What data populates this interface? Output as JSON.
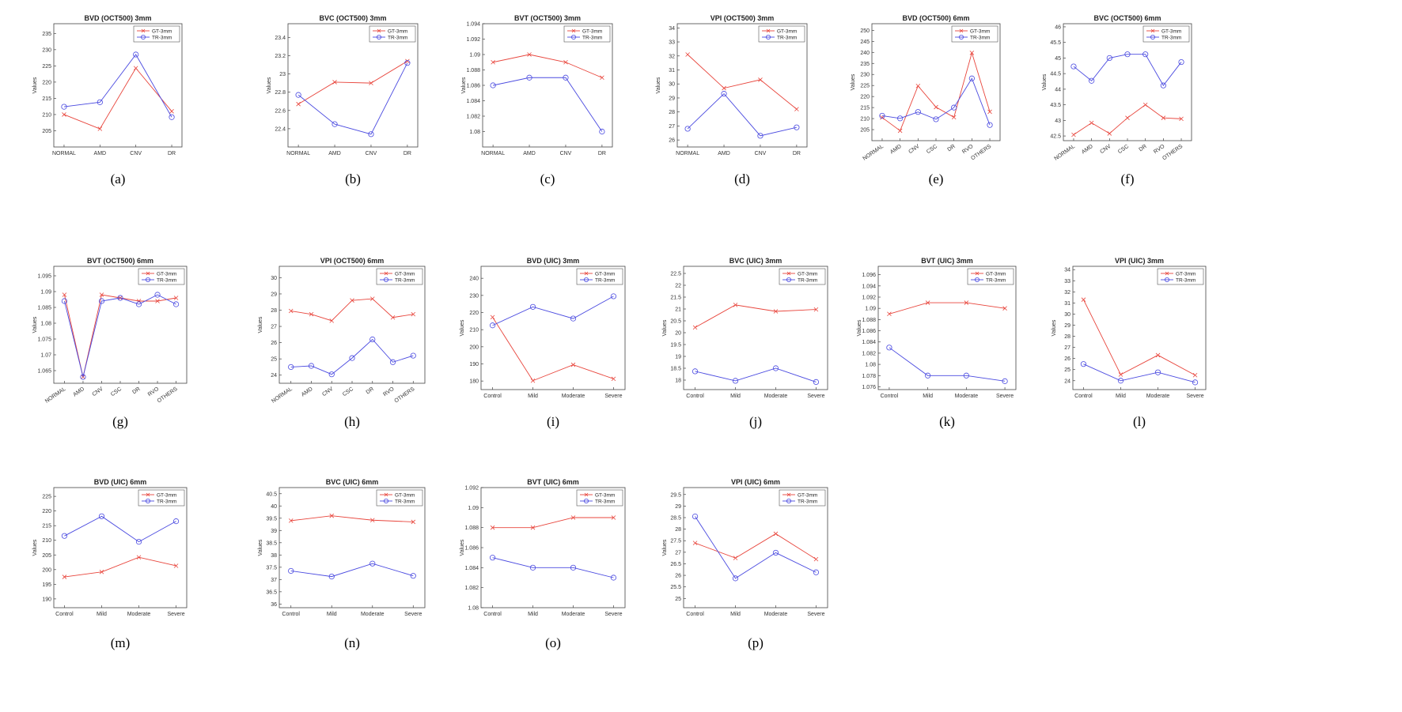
{
  "colors": {
    "gt": "#e8453c",
    "tr": "#4a4ae0",
    "axis": "#333333"
  },
  "chart_data": [
    {
      "type": "line",
      "title": "BVD (OCT500) 3mm",
      "ylabel": "Values",
      "caption": "(a)",
      "categories": [
        "NORMAL",
        "AMD",
        "CNV",
        "DR"
      ],
      "ylim": [
        200,
        238
      ],
      "yticks": [
        205,
        210,
        215,
        220,
        225,
        230,
        235
      ],
      "rotate": false,
      "series": [
        {
          "name": "GT-3mm",
          "marker": "x",
          "values": [
            210,
            205.6,
            224.3,
            211
          ]
        },
        {
          "name": "TR-3mm",
          "marker": "o",
          "values": [
            212.4,
            213.8,
            228.5,
            209.2
          ]
        }
      ]
    },
    {
      "type": "line",
      "title": "BVC (OCT500) 3mm",
      "ylabel": "Values",
      "caption": "(b)",
      "categories": [
        "NORMAL",
        "AMD",
        "CNV",
        "DR"
      ],
      "ylim": [
        22.2,
        23.55
      ],
      "yticks": [
        22.4,
        22.6,
        22.8,
        23,
        23.2,
        23.4
      ],
      "rotate": false,
      "series": [
        {
          "name": "GT-3mm",
          "marker": "x",
          "values": [
            22.67,
            22.91,
            22.9,
            23.14
          ]
        },
        {
          "name": "TR-3mm",
          "marker": "o",
          "values": [
            22.77,
            22.45,
            22.34,
            23.12
          ]
        }
      ]
    },
    {
      "type": "line",
      "title": "BVT (OCT500) 3mm",
      "ylabel": "Values",
      "caption": "(c)",
      "categories": [
        "NORMAL",
        "AMD",
        "CNV",
        "DR"
      ],
      "ylim": [
        1.078,
        1.094
      ],
      "yticks": [
        1.08,
        1.082,
        1.084,
        1.086,
        1.088,
        1.09,
        1.092,
        1.094
      ],
      "rotate": false,
      "series": [
        {
          "name": "GT-3mm",
          "marker": "x",
          "values": [
            1.089,
            1.09,
            1.089,
            1.087
          ]
        },
        {
          "name": "TR-3mm",
          "marker": "o",
          "values": [
            1.086,
            1.087,
            1.087,
            1.08
          ]
        }
      ]
    },
    {
      "type": "line",
      "title": "VPI (OCT500) 3mm",
      "ylabel": "Values",
      "caption": "(d)",
      "categories": [
        "NORMAL",
        "AMD",
        "CNV",
        "DR"
      ],
      "ylim": [
        25.5,
        34.3
      ],
      "yticks": [
        26,
        27,
        28,
        29,
        30,
        31,
        32,
        33,
        34
      ],
      "rotate": false,
      "series": [
        {
          "name": "GT-3mm",
          "marker": "x",
          "values": [
            32.1,
            29.7,
            30.3,
            28.2
          ]
        },
        {
          "name": "TR-3mm",
          "marker": "o",
          "values": [
            26.8,
            29.3,
            26.3,
            26.9
          ]
        }
      ]
    },
    {
      "type": "line",
      "title": "BVD (OCT500) 6mm",
      "ylabel": "Values",
      "caption": "(e)",
      "categories": [
        "NORMAL",
        "AMD",
        "CNV",
        "CSC",
        "DR",
        "RVO",
        "OTHERS"
      ],
      "ylim": [
        200,
        253
      ],
      "yticks": [
        205,
        210,
        215,
        220,
        225,
        230,
        235,
        240,
        245,
        250
      ],
      "rotate": true,
      "series": [
        {
          "name": "GT-3mm",
          "marker": "x",
          "values": [
            210.5,
            204.5,
            224.8,
            215.2,
            210.6,
            239.8,
            213.1
          ]
        },
        {
          "name": "TR-3mm",
          "marker": "o",
          "values": [
            211.3,
            210.1,
            213,
            209.7,
            215,
            228.2,
            207.1
          ]
        }
      ]
    },
    {
      "type": "line",
      "title": "BVC (OCT500) 6mm",
      "ylabel": "Values",
      "caption": "(f)",
      "categories": [
        "NORMAL",
        "AMD",
        "CNV",
        "CSC",
        "DR",
        "RVO",
        "OTHERS"
      ],
      "ylim": [
        42.35,
        46.1
      ],
      "yticks": [
        42.5,
        43,
        43.5,
        44,
        44.5,
        45,
        45.5,
        46
      ],
      "rotate": true,
      "series": [
        {
          "name": "GT-3mm",
          "marker": "x",
          "values": [
            42.54,
            42.92,
            42.58,
            43.08,
            43.5,
            43.08,
            43.05
          ]
        },
        {
          "name": "TR-3mm",
          "marker": "o",
          "values": [
            44.73,
            44.27,
            45,
            45.12,
            45.12,
            44.12,
            44.87
          ]
        }
      ]
    },
    {
      "type": "line",
      "title": "BVT (OCT500) 6mm",
      "ylabel": "Values",
      "caption": "(g)",
      "categories": [
        "NORMAL",
        "AMD",
        "CNV",
        "CSC",
        "DR",
        "RVO",
        "OTHERS"
      ],
      "ylim": [
        1.061,
        1.098
      ],
      "yticks": [
        1.065,
        1.07,
        1.075,
        1.08,
        1.085,
        1.09,
        1.095
      ],
      "rotate": true,
      "series": [
        {
          "name": "GT-3mm",
          "marker": "x",
          "values": [
            1.089,
            1.063,
            1.089,
            1.088,
            1.087,
            1.087,
            1.088
          ]
        },
        {
          "name": "TR-3mm",
          "marker": "o",
          "values": [
            1.087,
            1.063,
            1.087,
            1.088,
            1.086,
            1.089,
            1.086
          ]
        }
      ]
    },
    {
      "type": "line",
      "title": "VPI (OCT500) 6mm",
      "ylabel": "Values",
      "caption": "(h)",
      "categories": [
        "NORMAL",
        "AMD",
        "CNV",
        "CSC",
        "DR",
        "RVO",
        "OTHERS"
      ],
      "ylim": [
        23.5,
        30.7
      ],
      "yticks": [
        24,
        25,
        26,
        27,
        28,
        29,
        30
      ],
      "rotate": true,
      "series": [
        {
          "name": "GT-3mm",
          "marker": "x",
          "values": [
            27.95,
            27.75,
            27.35,
            28.6,
            28.7,
            27.55,
            27.75
          ]
        },
        {
          "name": "TR-3mm",
          "marker": "o",
          "values": [
            24.5,
            24.57,
            24.05,
            25.05,
            26.2,
            24.8,
            25.2
          ]
        }
      ]
    },
    {
      "type": "line",
      "title": "BVD (UIC) 3mm",
      "ylabel": "Values",
      "caption": "(i)",
      "categories": [
        "Control",
        "Mild",
        "Moderate",
        "Severe"
      ],
      "ylim": [
        175,
        247
      ],
      "yticks": [
        180,
        190,
        200,
        210,
        220,
        230,
        240
      ],
      "rotate": false,
      "series": [
        {
          "name": "GT-3mm",
          "marker": "x",
          "values": [
            217.3,
            180.2,
            189.5,
            181.3
          ]
        },
        {
          "name": "TR-3mm",
          "marker": "o",
          "values": [
            212.5,
            223.3,
            216.5,
            229.5
          ]
        }
      ]
    },
    {
      "type": "line",
      "title": "BVC (UIC) 3mm",
      "ylabel": "Values",
      "caption": "(j)",
      "categories": [
        "Control",
        "Mild",
        "Moderate",
        "Severe"
      ],
      "ylim": [
        17.6,
        22.8
      ],
      "yticks": [
        18,
        18.5,
        19,
        19.5,
        20,
        20.5,
        21,
        21.5,
        22,
        22.5
      ],
      "rotate": false,
      "series": [
        {
          "name": "GT-3mm",
          "marker": "x",
          "values": [
            20.22,
            21.17,
            20.9,
            20.98
          ]
        },
        {
          "name": "TR-3mm",
          "marker": "o",
          "values": [
            18.37,
            17.97,
            18.5,
            17.92
          ]
        }
      ]
    },
    {
      "type": "line",
      "title": "BVT (UIC) 3mm",
      "ylabel": "Values",
      "caption": "(k)",
      "categories": [
        "Control",
        "Mild",
        "Moderate",
        "Severe"
      ],
      "ylim": [
        1.0755,
        1.0975
      ],
      "yticks": [
        1.076,
        1.078,
        1.08,
        1.082,
        1.084,
        1.086,
        1.088,
        1.09,
        1.092,
        1.094,
        1.096
      ],
      "rotate": false,
      "series": [
        {
          "name": "GT-3mm",
          "marker": "x",
          "values": [
            1.089,
            1.091,
            1.091,
            1.09
          ]
        },
        {
          "name": "TR-3mm",
          "marker": "o",
          "values": [
            1.083,
            1.078,
            1.078,
            1.077
          ]
        }
      ]
    },
    {
      "type": "line",
      "title": "VPI (UIC) 3mm",
      "ylabel": "Values",
      "caption": "(l)",
      "categories": [
        "Control",
        "Mild",
        "Moderate",
        "Severe"
      ],
      "ylim": [
        23.2,
        34.3
      ],
      "yticks": [
        24,
        25,
        26,
        27,
        28,
        29,
        30,
        31,
        32,
        33,
        34
      ],
      "rotate": false,
      "series": [
        {
          "name": "GT-3mm",
          "marker": "x",
          "values": [
            31.3,
            24.55,
            26.3,
            24.5
          ]
        },
        {
          "name": "TR-3mm",
          "marker": "o",
          "values": [
            25.5,
            24,
            24.75,
            23.85
          ]
        }
      ]
    },
    {
      "type": "line",
      "title": "BVD (UIC) 6mm",
      "ylabel": "Values",
      "caption": "(m)",
      "categories": [
        "Control",
        "Mild",
        "Moderate",
        "Severe"
      ],
      "ylim": [
        187,
        228
      ],
      "yticks": [
        190,
        195,
        200,
        205,
        210,
        215,
        220,
        225
      ],
      "rotate": false,
      "series": [
        {
          "name": "GT-3mm",
          "marker": "x",
          "values": [
            197.5,
            199.2,
            204.2,
            201.3
          ]
        },
        {
          "name": "TR-3mm",
          "marker": "o",
          "values": [
            211.5,
            218.2,
            209.5,
            216.5
          ]
        }
      ]
    },
    {
      "type": "line",
      "title": "BVC (UIC) 6mm",
      "ylabel": "Values",
      "caption": "(n)",
      "categories": [
        "Control",
        "Mild",
        "Moderate",
        "Severe"
      ],
      "ylim": [
        35.85,
        40.75
      ],
      "yticks": [
        36,
        36.5,
        37,
        37.5,
        38,
        38.5,
        39,
        39.5,
        40,
        40.5
      ],
      "rotate": false,
      "series": [
        {
          "name": "GT-3mm",
          "marker": "x",
          "values": [
            39.4,
            39.6,
            39.42,
            39.35
          ]
        },
        {
          "name": "TR-3mm",
          "marker": "o",
          "values": [
            37.35,
            37.12,
            37.65,
            37.15
          ]
        }
      ]
    },
    {
      "type": "line",
      "title": "BVT (UIC) 6mm",
      "ylabel": "Values",
      "caption": "(o)",
      "categories": [
        "Control",
        "Mild",
        "Moderate",
        "Severe"
      ],
      "ylim": [
        1.08,
        1.092
      ],
      "yticks": [
        1.08,
        1.082,
        1.084,
        1.086,
        1.088,
        1.09,
        1.092
      ],
      "rotate": false,
      "series": [
        {
          "name": "GT-3mm",
          "marker": "x",
          "values": [
            1.088,
            1.088,
            1.089,
            1.089
          ]
        },
        {
          "name": "TR-3mm",
          "marker": "o",
          "values": [
            1.085,
            1.084,
            1.084,
            1.083
          ]
        }
      ]
    },
    {
      "type": "line",
      "title": "VPI (UIC) 6mm",
      "ylabel": "Values",
      "caption": "(p)",
      "categories": [
        "Control",
        "Mild",
        "Moderate",
        "Severe"
      ],
      "ylim": [
        24.6,
        29.8
      ],
      "yticks": [
        25,
        25.5,
        26,
        26.5,
        27,
        27.5,
        28,
        28.5,
        29,
        29.5
      ],
      "rotate": false,
      "series": [
        {
          "name": "GT-3mm",
          "marker": "x",
          "values": [
            27.4,
            26.75,
            27.8,
            26.7
          ]
        },
        {
          "name": "TR-3mm",
          "marker": "o",
          "values": [
            28.55,
            25.87,
            26.98,
            26.13
          ]
        }
      ]
    }
  ]
}
